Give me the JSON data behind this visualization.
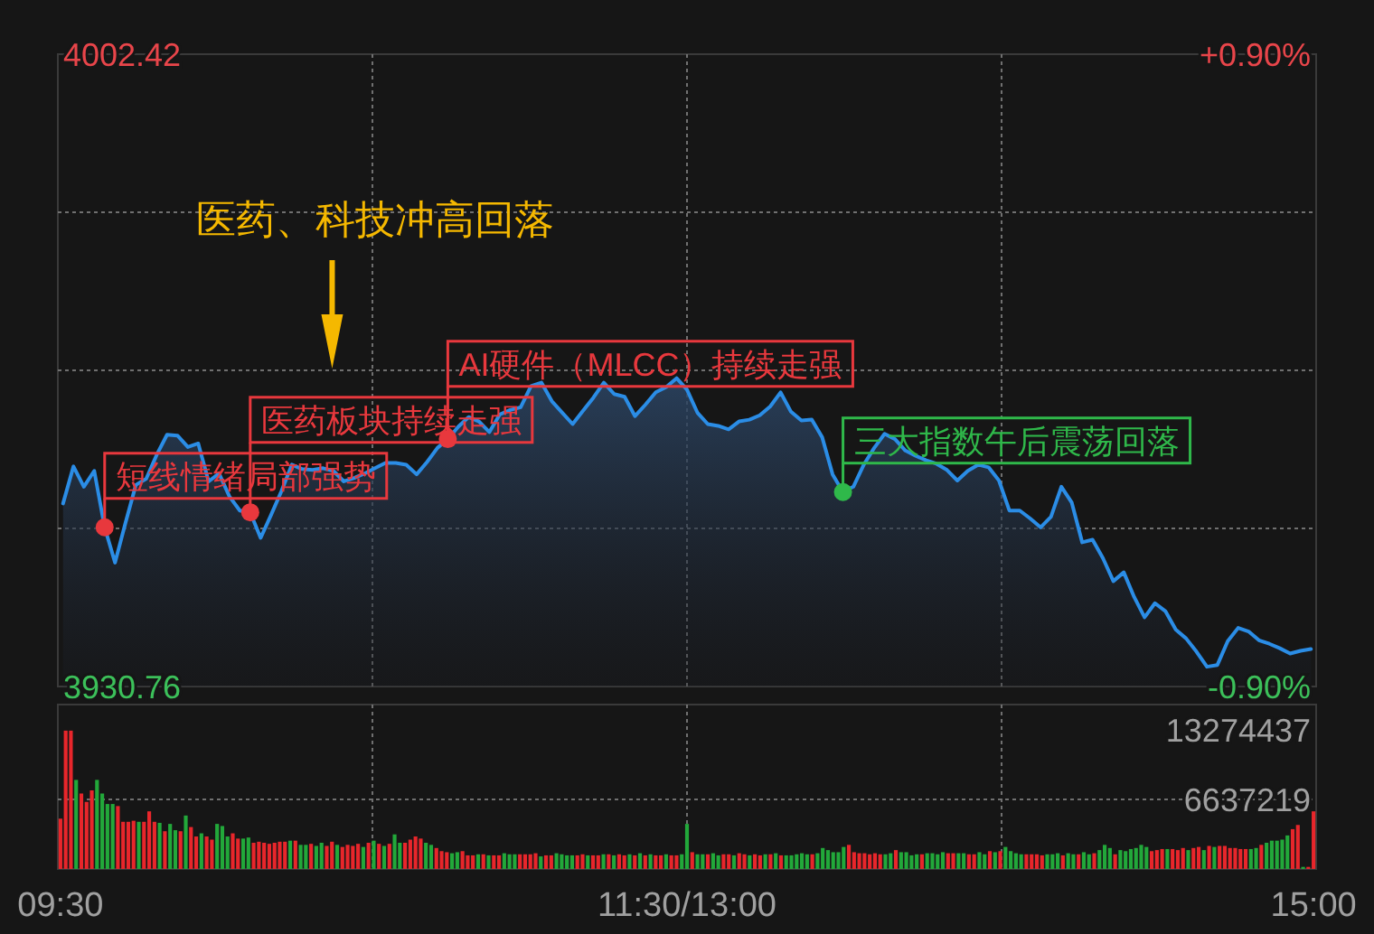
{
  "chart_data": [
    {
      "type": "area",
      "ylim": [
        3930.76,
        4002.42
      ],
      "categories": [
        null,
        null,
        null,
        null,
        null,
        null,
        null,
        null,
        null,
        null,
        null,
        null,
        null,
        null,
        null,
        null,
        null,
        null,
        null,
        null,
        null,
        null,
        null,
        null,
        null,
        null,
        null,
        null,
        null,
        null,
        null,
        null,
        null,
        null,
        null,
        null,
        null,
        null,
        null,
        null,
        null,
        null,
        null,
        null,
        null,
        null,
        null,
        null,
        null,
        null,
        null,
        null,
        null,
        null,
        null,
        null,
        null,
        null,
        null,
        null,
        null,
        null,
        null,
        null,
        null,
        null,
        null,
        null,
        null,
        null,
        null,
        null,
        null,
        null,
        null,
        null,
        null,
        null,
        null,
        null,
        null,
        null,
        null,
        null,
        null,
        null,
        null,
        null,
        null,
        null,
        null,
        null,
        null,
        null,
        null,
        null,
        null,
        null,
        null,
        null,
        null,
        null,
        null,
        null,
        null,
        null,
        null,
        null,
        null,
        null,
        null,
        null,
        null,
        null,
        null,
        null,
        null,
        null,
        null,
        null,
        null
      ],
      "yticks": [
        {
          "value": 3930.76,
          "label": "3930.76"
        },
        {
          "value": 3948.675,
          "label": null
        },
        {
          "value": 3966.59,
          "label": null
        },
        {
          "value": 3984.505,
          "label": null
        },
        {
          "value": 4002.42,
          "label": "4002.42"
        }
      ],
      "y2lim": [
        -0.9,
        0.9
      ],
      "y2ticks": [
        {
          "value": -0.9,
          "label": "-0.90%"
        },
        {
          "value": 0.9,
          "label": "+0.90%"
        }
      ],
      "tick_labels": "y",
      "grid": true,
      "series": [
        {
          "type": "area",
          "color": "#2b8de6",
          "values": [
            3951.5,
            3955.7,
            3953.4,
            3955.2,
            3948.8,
            3944.8,
            3949.3,
            3953.6,
            3954.3,
            3957.0,
            3959.3,
            3959.2,
            3957.9,
            3958.3,
            3954.0,
            3954.9,
            3952.3,
            3950.7,
            3950.5,
            3947.6,
            3950.2,
            3952.9,
            3955.9,
            3955.4,
            3955.3,
            3955.5,
            3955.2,
            3954.0,
            3954.4,
            3954.9,
            3955.5,
            3956.1,
            3956.1,
            3955.9,
            3954.8,
            3956.2,
            3957.8,
            3958.8,
            3960.2,
            3961.3,
            3960.8,
            3959.6,
            3961.6,
            3962.1,
            3962.4,
            3964.8,
            3965.2,
            3963.1,
            3961.8,
            3960.5,
            3962.0,
            3963.5,
            3965.2,
            3963.9,
            3963.6,
            3961.4,
            3962.7,
            3964.1,
            3964.7,
            3965.7,
            3964.4,
            3961.8,
            3960.5,
            3960.3,
            3959.9,
            3960.8,
            3961.0,
            3961.5,
            3962.5,
            3964.1,
            3961.9,
            3960.9,
            3961.0,
            3959.0,
            3954.8,
            3952.8,
            3953.4,
            3955.9,
            3957.8,
            3959.4,
            3958.8,
            3957.5,
            3956.9,
            3956.4,
            3956.0,
            3955.3,
            3954.1,
            3955.2,
            3955.9,
            3955.6,
            3954.1,
            3950.7,
            3950.7,
            3949.8,
            3948.8,
            3950.0,
            3953.4,
            3951.6,
            3947.1,
            3947.4,
            3945.3,
            3942.7,
            3943.7,
            3940.9,
            3938.6,
            3940.2,
            3939.3,
            3937.2,
            3936.2,
            3934.7,
            3933.0,
            3933.2,
            3935.9,
            3937.4,
            3937.0,
            3936.0,
            3935.6,
            3935.1,
            3934.5,
            3934.8,
            3935.0
          ]
        },
        {
          "type": "scatter",
          "values": [
            null,
            null,
            null,
            null,
            3948.8,
            null,
            null,
            null,
            null,
            null,
            null,
            null,
            null,
            null,
            null,
            null,
            null,
            null,
            3950.5,
            null,
            null,
            null,
            null,
            null,
            null,
            null,
            null,
            null,
            null,
            null,
            null,
            null,
            null,
            null,
            null,
            null,
            null,
            3958.8,
            null,
            null,
            null,
            null,
            null,
            null,
            null,
            null,
            null,
            null,
            null,
            null,
            null,
            null,
            null,
            null,
            null,
            null,
            null,
            null,
            null,
            null,
            null,
            null,
            null,
            null,
            null,
            null,
            null,
            null,
            null,
            null,
            null,
            null,
            null,
            null,
            null,
            3952.8,
            null,
            null,
            null,
            null,
            null,
            null,
            null,
            null,
            null,
            null,
            null,
            null,
            null,
            null,
            null,
            null,
            null,
            null,
            null,
            null,
            null,
            null,
            null,
            null,
            null,
            null,
            null,
            null,
            null,
            null,
            null,
            null,
            null,
            null,
            null,
            null,
            null,
            null,
            null,
            null,
            null,
            null,
            null,
            null,
            null
          ],
          "colors": [
            null,
            null,
            null,
            null,
            "#e8383d",
            null,
            null,
            null,
            null,
            null,
            null,
            null,
            null,
            null,
            null,
            null,
            null,
            null,
            "#e8383d",
            null,
            null,
            null,
            null,
            null,
            null,
            null,
            null,
            null,
            null,
            null,
            null,
            null,
            null,
            null,
            null,
            null,
            null,
            "#e8383d",
            null,
            null,
            null,
            null,
            null,
            null,
            null,
            null,
            null,
            null,
            null,
            null,
            null,
            null,
            null,
            null,
            null,
            null,
            null,
            null,
            null,
            null,
            null,
            null,
            null,
            null,
            null,
            null,
            null,
            null,
            null,
            null,
            null,
            null,
            null,
            null,
            null,
            "#2fb84a",
            null,
            null,
            null,
            null,
            null,
            null,
            null,
            null,
            null,
            null,
            null,
            null,
            null,
            null,
            null,
            null,
            null,
            null,
            null,
            null,
            null,
            null,
            null,
            null,
            null,
            null,
            null,
            null,
            null,
            null,
            null,
            null,
            null,
            null,
            null,
            null,
            null,
            null,
            null,
            null,
            null,
            null,
            null,
            null,
            null
          ]
        }
      ],
      "annotations": [
        "短线情绪局部强势",
        "医药板块持续走强",
        "AI硬件（MLCC）持续走强",
        "三大指数午后震荡回落",
        "医药、科技冲高回落"
      ]
    },
    {
      "type": "bar",
      "ylim": [
        0,
        13274437
      ],
      "yticks": [
        6637219,
        13274437
      ],
      "grid": true,
      "categories": [
        "09:30",
        null,
        null,
        null,
        null,
        null,
        null,
        null,
        null,
        null,
        null,
        null,
        null,
        null,
        null,
        null,
        null,
        null,
        null,
        null,
        null,
        null,
        null,
        null,
        null,
        null,
        null,
        null,
        null,
        null,
        null,
        null,
        null,
        null,
        null,
        null,
        null,
        null,
        null,
        null,
        null,
        null,
        null,
        null,
        null,
        null,
        null,
        null,
        null,
        null,
        null,
        null,
        null,
        null,
        null,
        null,
        null,
        null,
        null,
        null,
        null,
        null,
        null,
        null,
        null,
        null,
        null,
        null,
        null,
        null,
        null,
        null,
        null,
        null,
        null,
        null,
        null,
        null,
        null,
        null,
        null,
        null,
        null,
        null,
        null,
        null,
        null,
        null,
        null,
        null,
        null,
        null,
        null,
        null,
        null,
        null,
        null,
        null,
        null,
        null,
        null,
        null,
        null,
        null,
        null,
        null,
        null,
        null,
        null,
        null,
        null,
        null,
        null,
        null,
        null,
        null,
        null,
        null,
        null,
        null,
        "11:30/13:00",
        null,
        null,
        null,
        null,
        null,
        null,
        null,
        null,
        null,
        null,
        null,
        null,
        null,
        null,
        null,
        null,
        null,
        null,
        null,
        null,
        null,
        null,
        null,
        null,
        null,
        null,
        null,
        null,
        null,
        null,
        null,
        null,
        null,
        null,
        null,
        null,
        null,
        null,
        null,
        null,
        null,
        null,
        null,
        null,
        null,
        null,
        null,
        null,
        null,
        null,
        null,
        null,
        null,
        null,
        null,
        null,
        null,
        null,
        null,
        null,
        null,
        null,
        null,
        null,
        null,
        null,
        null,
        null,
        null,
        null,
        null,
        null,
        null,
        null,
        null,
        null,
        null,
        null,
        null,
        null,
        null,
        null,
        null,
        null,
        null,
        null,
        null,
        null,
        null,
        null,
        null,
        null,
        null,
        null,
        null,
        null,
        null,
        null,
        null,
        null,
        null,
        null,
        null,
        null,
        null,
        null,
        null,
        null,
        null,
        null,
        null,
        null,
        null,
        null,
        null,
        null,
        null,
        null,
        null,
        "15:00"
      ],
      "values": [
        4800000,
        13200000,
        13200000,
        8500000,
        7200000,
        6400000,
        7500000,
        8500000,
        7200000,
        6200000,
        6200000,
        6000000,
        4500000,
        4500000,
        4600000,
        4500000,
        4500000,
        5500000,
        4500000,
        4400000,
        3600000,
        4300000,
        3700000,
        3600000,
        5100000,
        4000000,
        3100000,
        3400000,
        3100000,
        2800000,
        4300000,
        4100000,
        3100000,
        3400000,
        2900000,
        2900000,
        3000000,
        2500000,
        2600000,
        2500000,
        2400000,
        2500000,
        2600000,
        2600000,
        2700000,
        2700000,
        2300000,
        2300000,
        2400000,
        2200000,
        2500000,
        2200000,
        2600000,
        2300000,
        2100000,
        2300000,
        2200000,
        2400000,
        2100000,
        2500000,
        2700000,
        2400000,
        2200000,
        2400000,
        3300000,
        2500000,
        2500000,
        2800000,
        3100000,
        2900000,
        2500000,
        2300000,
        2000000,
        1700000,
        1600000,
        1500000,
        1600000,
        1700000,
        1300000,
        1300000,
        1400000,
        1400000,
        1300000,
        1300000,
        1300000,
        1500000,
        1400000,
        1400000,
        1400000,
        1400000,
        1400000,
        1500000,
        1200000,
        1300000,
        1300000,
        1500000,
        1400000,
        1300000,
        1300000,
        1300000,
        1400000,
        1300000,
        1300000,
        1300000,
        1400000,
        1400000,
        1300000,
        1400000,
        1300000,
        1400000,
        1300000,
        1500000,
        1300000,
        1400000,
        1300000,
        1300000,
        1400000,
        1300000,
        1300000,
        1400000,
        4300000,
        1600000,
        1400000,
        1400000,
        1400000,
        1500000,
        1300000,
        1400000,
        1400000,
        1300000,
        1500000,
        1400000,
        1300000,
        1400000,
        1300000,
        1400000,
        1400000,
        1500000,
        1300000,
        1300000,
        1300000,
        1400000,
        1500000,
        1400000,
        1400000,
        1500000,
        2000000,
        1800000,
        1600000,
        1600000,
        2100000,
        2300000,
        1600000,
        1500000,
        1500000,
        1400000,
        1500000,
        1400000,
        1400000,
        1500000,
        1800000,
        1600000,
        1600000,
        1300000,
        1400000,
        1400000,
        1500000,
        1500000,
        1400000,
        1600000,
        1500000,
        1500000,
        1500000,
        1500000,
        1400000,
        1400000,
        1600000,
        1400000,
        1700000,
        1600000,
        1700000,
        2100000,
        1700000,
        1500000,
        1400000,
        1400000,
        1400000,
        1400000,
        1300000,
        1400000,
        1400000,
        1500000,
        1300000,
        1500000,
        1400000,
        1400000,
        1600000,
        1400000,
        1500000,
        1800000,
        2300000,
        2000000,
        1400000,
        1800000,
        1700000,
        1900000,
        2000000,
        2300000,
        2100000,
        1700000,
        1800000,
        1900000,
        1900000,
        1900000,
        1800000,
        2000000,
        1800000,
        2000000,
        2100000,
        1800000,
        2200000,
        2100000,
        2200000,
        2200000,
        2000000,
        2000000,
        1900000,
        1900000,
        1900000,
        2000000,
        2300000,
        2500000,
        2700000,
        2700000,
        2800000,
        3200000,
        3800000,
        4200000,
        200000,
        200000,
        5500000
      ],
      "colors": [
        "#e8262b",
        "#e8262b",
        "#e8262b",
        "#22a83a",
        "#e8262b",
        "#e8262b",
        "#e8262b",
        "#22a83a",
        "#22a83a",
        "#22a83a",
        "#22a83a",
        "#e8262b",
        "#e8262b",
        "#e8262b",
        "#e8262b",
        "#22a83a",
        "#e8262b",
        "#e8262b",
        "#e8262b",
        "#22a83a",
        "#e8262b",
        "#22a83a",
        "#22a83a",
        "#e8262b",
        "#22a83a",
        "#e8262b",
        "#e8262b",
        "#22a83a",
        "#e8262b",
        "#e8262b",
        "#22a83a",
        "#22a83a",
        "#22a83a",
        "#e8262b",
        "#e8262b",
        "#22a83a",
        "#22a83a",
        "#e8262b",
        "#e8262b",
        "#e8262b",
        "#e8262b",
        "#e8262b",
        "#e8262b",
        "#e8262b",
        "#22a83a",
        "#e8262b",
        "#22a83a",
        "#22a83a",
        "#e8262b",
        "#22a83a",
        "#22a83a",
        "#e8262b",
        "#e8262b",
        "#22a83a",
        "#e8262b",
        "#e8262b",
        "#e8262b",
        "#e8262b",
        "#22a83a",
        "#e8262b",
        "#22a83a",
        "#e8262b",
        "#22a83a",
        "#e8262b",
        "#22a83a",
        "#22a83a",
        "#e8262b",
        "#e8262b",
        "#e8262b",
        "#e8262b",
        "#22a83a",
        "#22a83a",
        "#e8262b",
        "#e8262b",
        "#e8262b",
        "#22a83a",
        "#22a83a",
        "#e8262b",
        "#e8262b",
        "#e8262b",
        "#22a83a",
        "#e8262b",
        "#22a83a",
        "#e8262b",
        "#e8262b",
        "#22a83a",
        "#22a83a",
        "#22a83a",
        "#e8262b",
        "#e8262b",
        "#e8262b",
        "#e8262b",
        "#22a83a",
        "#e8262b",
        "#e8262b",
        "#22a83a",
        "#22a83a",
        "#22a83a",
        "#22a83a",
        "#e8262b",
        "#e8262b",
        "#22a83a",
        "#e8262b",
        "#e8262b",
        "#22a83a",
        "#e8262b",
        "#22a83a",
        "#e8262b",
        "#e8262b",
        "#22a83a",
        "#e8262b",
        "#22a83a",
        "#e8262b",
        "#22a83a",
        "#e8262b",
        "#e8262b",
        "#22a83a",
        "#e8262b",
        "#e8262b",
        "#22a83a",
        "#22a83a",
        "#e8262b",
        "#22a83a",
        "#22a83a",
        "#e8262b",
        "#22a83a",
        "#22a83a",
        "#e8262b",
        "#e8262b",
        "#22a83a",
        "#e8262b",
        "#e8262b",
        "#22a83a",
        "#e8262b",
        "#e8262b",
        "#22a83a",
        "#e8262b",
        "#22a83a",
        "#e8262b",
        "#22a83a",
        "#22a83a",
        "#22a83a",
        "#22a83a",
        "#22a83a",
        "#e8262b",
        "#22a83a",
        "#22a83a",
        "#22a83a",
        "#22a83a",
        "#22a83a",
        "#22a83a",
        "#e8262b",
        "#e8262b",
        "#e8262b",
        "#e8262b",
        "#e8262b",
        "#e8262b",
        "#e8262b",
        "#22a83a",
        "#22a83a",
        "#e8262b",
        "#22a83a",
        "#22a83a",
        "#22a83a",
        "#22a83a",
        "#e8262b",
        "#22a83a",
        "#22a83a",
        "#22a83a",
        "#22a83a",
        "#e8262b",
        "#e8262b",
        "#22a83a",
        "#22a83a",
        "#e8262b",
        "#e8262b",
        "#22a83a",
        "#22a83a",
        "#e8262b",
        "#22a83a",
        "#e8262b",
        "#22a83a",
        "#22a83a",
        "#22a83a",
        "#22a83a",
        "#e8262b",
        "#e8262b",
        "#e8262b",
        "#e8262b",
        "#22a83a",
        "#22a83a",
        "#22a83a",
        "#e8262b",
        "#22a83a",
        "#22a83a",
        "#e8262b",
        "#22a83a",
        "#22a83a",
        "#e8262b",
        "#22a83a",
        "#22a83a",
        "#22a83a",
        "#e8262b",
        "#22a83a",
        "#22a83a",
        "#22a83a",
        "#22a83a",
        "#22a83a",
        "#22a83a",
        "#e8262b",
        "#e8262b",
        "#e8262b",
        "#22a83a",
        "#e8262b",
        "#e8262b",
        "#e8262b",
        "#22a83a",
        "#e8262b",
        "#e8262b",
        "#22a83a",
        "#e8262b",
        "#22a83a",
        "#e8262b",
        "#e8262b",
        "#e8262b",
        "#e8262b",
        "#e8262b",
        "#e8262b",
        "#22a83a",
        "#22a83a",
        "#e8262b",
        "#22a83a",
        "#22a83a",
        "#22a83a",
        "#22a83a",
        "#22a83a",
        "#e8262b",
        "#e8262b",
        "#22a83a",
        "#e8262b",
        "#e8262b"
      ]
    }
  ]
}
